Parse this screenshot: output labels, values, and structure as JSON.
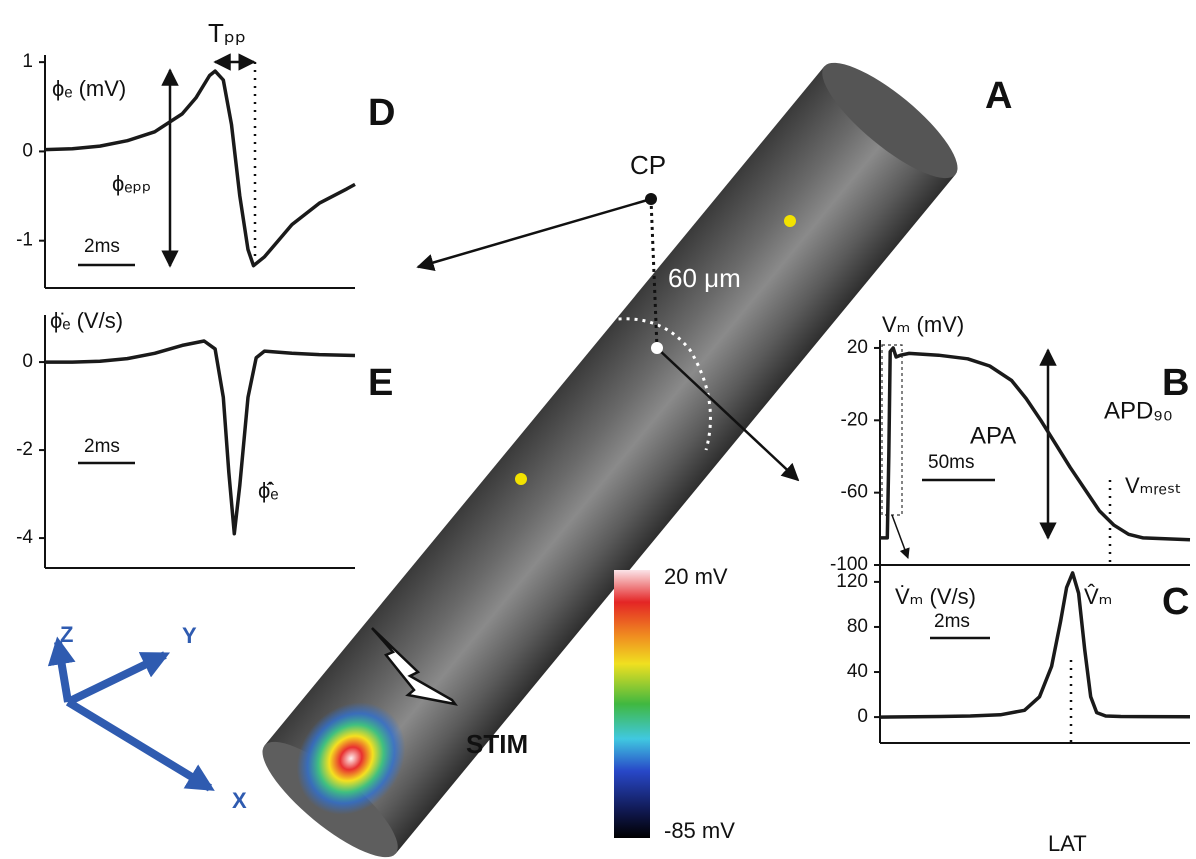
{
  "chart_data": [
    {
      "type": "line",
      "panel": "D",
      "ylabel": "ϕₑ (mV)",
      "color": "#1a1a1a",
      "x": [
        0,
        1,
        2,
        3,
        4,
        5,
        5.5,
        6,
        6.2,
        6.5,
        6.8,
        7.1,
        7.4,
        7.6,
        8,
        8.5,
        9,
        10,
        11,
        11.3
      ],
      "values": [
        0.02,
        0.03,
        0.06,
        0.12,
        0.22,
        0.42,
        0.6,
        0.85,
        0.9,
        0.8,
        0.3,
        -0.5,
        -1.1,
        -1.28,
        -1.18,
        -1.0,
        -0.82,
        -0.58,
        -0.42,
        -0.37
      ],
      "xlim": [
        0,
        11.3
      ],
      "ylim": [
        -1.53,
        1.08
      ],
      "yticks": [
        -1,
        0,
        1
      ],
      "annotations": [
        "Tₚₚ",
        "ϕₑₚₚ",
        "2ms"
      ]
    },
    {
      "type": "line",
      "panel": "E",
      "ylabel": "ϕ̇ₑ (V/s)",
      "color": "#1a1a1a",
      "x": [
        0,
        1,
        2,
        3,
        4,
        5,
        5.8,
        6.2,
        6.5,
        6.7,
        6.9,
        7.1,
        7.4,
        7.7,
        8,
        9,
        10,
        11.3
      ],
      "values": [
        0,
        0,
        0.02,
        0.08,
        0.2,
        0.38,
        0.48,
        0.3,
        -0.8,
        -2.5,
        -3.9,
        -2.8,
        -0.8,
        0.1,
        0.25,
        0.2,
        0.17,
        0.15
      ],
      "xlim": [
        0,
        11.3
      ],
      "ylim": [
        -4.68,
        1.07
      ],
      "yticks": [
        -4,
        -2,
        0
      ],
      "annotations": [
        "2ms",
        "ϕ̂̇ₑ"
      ]
    },
    {
      "type": "line",
      "panel": "B",
      "ylabel": "Vₘ (mV)",
      "color": "#1a1a1a",
      "x": [
        0,
        5,
        6,
        7,
        9,
        11,
        14,
        20,
        40,
        60,
        75,
        90,
        100,
        110,
        120,
        130,
        140,
        150,
        160,
        170,
        180,
        212
      ],
      "values": [
        -85,
        -85,
        -40,
        18,
        20,
        15,
        16,
        17,
        16,
        14,
        10,
        2,
        -8,
        -20,
        -33,
        -46,
        -58,
        -70,
        -78,
        -83,
        -85,
        -86
      ],
      "xlim": [
        0,
        212
      ],
      "ylim": [
        -100,
        24.4
      ],
      "yticks": [
        -100,
        -60,
        -20,
        20
      ],
      "annotations": [
        "APA",
        "APD₉₀",
        "50ms",
        "Vₘᵣₑₛₜ"
      ]
    },
    {
      "type": "line",
      "panel": "C",
      "ylabel": "V̇ₘ (V/s)",
      "color": "#1a1a1a",
      "x": [
        0,
        2,
        3,
        4,
        4.8,
        5.3,
        5.7,
        6.0,
        6.2,
        6.4,
        6.6,
        6.8,
        7.0,
        7.2,
        7.5,
        8,
        10.3
      ],
      "values": [
        0,
        0.5,
        1,
        2,
        6,
        18,
        45,
        85,
        115,
        128,
        110,
        60,
        18,
        4,
        1,
        0.5,
        0.3
      ],
      "xlim": [
        0,
        10.3
      ],
      "ylim": [
        -23,
        135
      ],
      "yticks": [
        0,
        40,
        80,
        120
      ],
      "annotations": [
        "V̂ₘ",
        "2ms",
        "LAT"
      ]
    }
  ],
  "diagram": {
    "panel": "A",
    "cp": "CP",
    "distance": "60 μm",
    "stim": "STIM",
    "colorbar": {
      "max": "20 mV",
      "min": "-85 mV"
    },
    "axes": {
      "z": "Z",
      "y": "Y",
      "x": "X"
    }
  }
}
